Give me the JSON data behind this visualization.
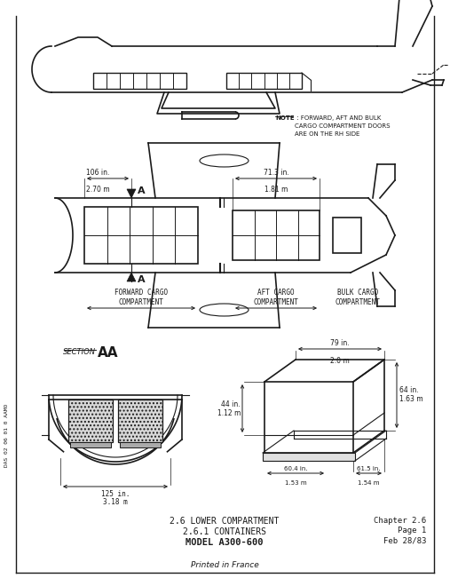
{
  "bg_color": "#ffffff",
  "line_color": "#1a1a1a",
  "title_lines": [
    "2.6 LOWER COMPARTMENT",
    "2.6.1 CONTAINERS",
    "MODEL A300-600"
  ],
  "chapter_text": [
    "Chapter 2.6",
    "Page 1",
    "Feb 28/83"
  ],
  "printed_in": "Printed in France",
  "note_text": [
    "NOTE : FORWARD, AFT AND BULK",
    "CARGO COMPARTMENT DOORS",
    "ARE ON THE RH SIDE"
  ],
  "forward_label": [
    "FORWARD CARGO",
    "COMPARTMENT"
  ],
  "aft_label": [
    "AFT CARGO",
    "COMPARTMENT"
  ],
  "bulk_label": [
    "BULK CARGO",
    "COMPARTMENT"
  ],
  "side_label": "DAS 02 06 01 0 AAMO",
  "section_title_plain": "SECTION",
  "section_title_bold": "AA"
}
